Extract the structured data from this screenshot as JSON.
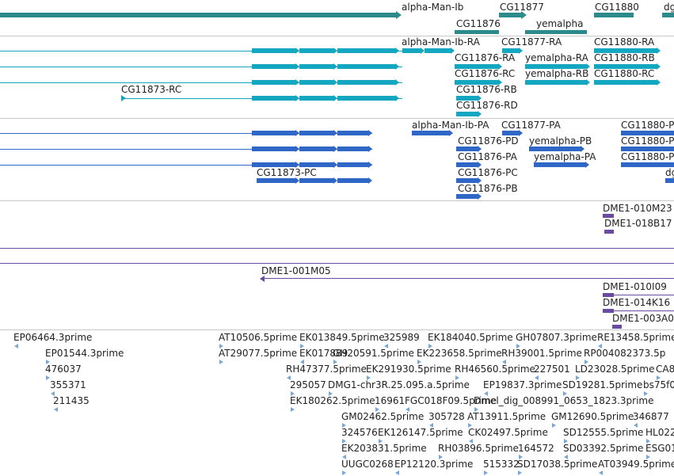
{
  "colors": {
    "gene_track": "#2e8b8b",
    "transcript_track": "#14a7c2",
    "protein_track": "#2f67c9",
    "probe_track": "#6b4aa3",
    "est_track": "#7aa8d6",
    "separator": "#c8c8c8",
    "text": "#222222"
  },
  "genes": {
    "alpha": "alpha-Man-Ib",
    "cg11877": "CG11877",
    "cg11880": "CG11880",
    "dg": "dg",
    "cg11876": "CG11876",
    "yemalpha": "yemalpha"
  },
  "transcripts": {
    "alpha_ra": "alpha-Man-Ib-RA",
    "cg11877_ra": "CG11877-RA",
    "cg11880_ra": "CG11880-RA",
    "cg11876_ra": "CG11876-RA",
    "yem_ra": "yemalpha-RA",
    "cg11880_rb": "CG11880-RB",
    "cg11876_rc": "CG11876-RC",
    "yem_rb": "yemalpha-RB",
    "cg11880_rc": "CG11880-RC",
    "cg11873_rc": "CG11873-RC",
    "cg11876_rb": "CG11876-RB",
    "cg11876_rd": "CG11876-RD"
  },
  "proteins": {
    "alpha_pa": "alpha-Man-Ib-PA",
    "cg11877_pa": "CG11877-PA",
    "cg11880_p1": "CG11880-P",
    "cg11876_pd": "CG11876-PD",
    "yem_pb": "yemalpha-PB",
    "cg11880_p2": "CG11880-P",
    "cg11876_pa": "CG11876-PA",
    "yem_pa": "yemalpha-PA",
    "cg11880_p3": "CG11880-P",
    "cg11873_pc": "CG11873-PC",
    "cg11876_pc": "CG11876-PC",
    "dg": "dg",
    "cg11876_pb": "CG11876-PB"
  },
  "probes": {
    "p1": "DME1-010M23",
    "p2": "DME1-018B17",
    "p3": "DME1-001M05",
    "p4": "DME1-010I09",
    "p5": "DME1-014K16",
    "p6": "DME1-003A0"
  },
  "ests": [
    "EP06464.3prime",
    "AT10506.5prime",
    "EK013849.5prime",
    "325989",
    "EK184040.5prime",
    "GH07807.3prime",
    "RE13458.5prime",
    "EP01544.3prime",
    "AT29077.5prime",
    "EK017889",
    "GH20591.5prime",
    "EK223658.5prime",
    "RH39001.5prime",
    "RP004082373.5p",
    "476037",
    "RH47377.5prime",
    "EK291930.5prime",
    "RH46560.5prime",
    "227501",
    "LD23028.5prime",
    "CA8",
    "355371",
    "295057",
    "DMG1-chr3R.25.095.a.5prime",
    "EP19837.3prime",
    "SD19281.5prime",
    "bs75f0",
    "211435",
    "EK180262.5prime",
    "16961",
    "FGC018F09.5prime",
    "Dmel_dig_008991_0653_1823.3prime",
    "GM02462.5prime",
    "305728",
    "AT13911.5prime",
    "GM12690.5prime",
    "346877",
    "324576",
    "EK126147.5prime",
    "CK02497.5prime",
    "SD12555.5prime",
    "HL022",
    "EK203831.5prime",
    "RH03896.5prime",
    "164572",
    "SD03392.5prime",
    "ESG01",
    "UUGC0268",
    "EP12120.3prime",
    "515332",
    "SD17038.5prime",
    "AT03949.5prime"
  ]
}
